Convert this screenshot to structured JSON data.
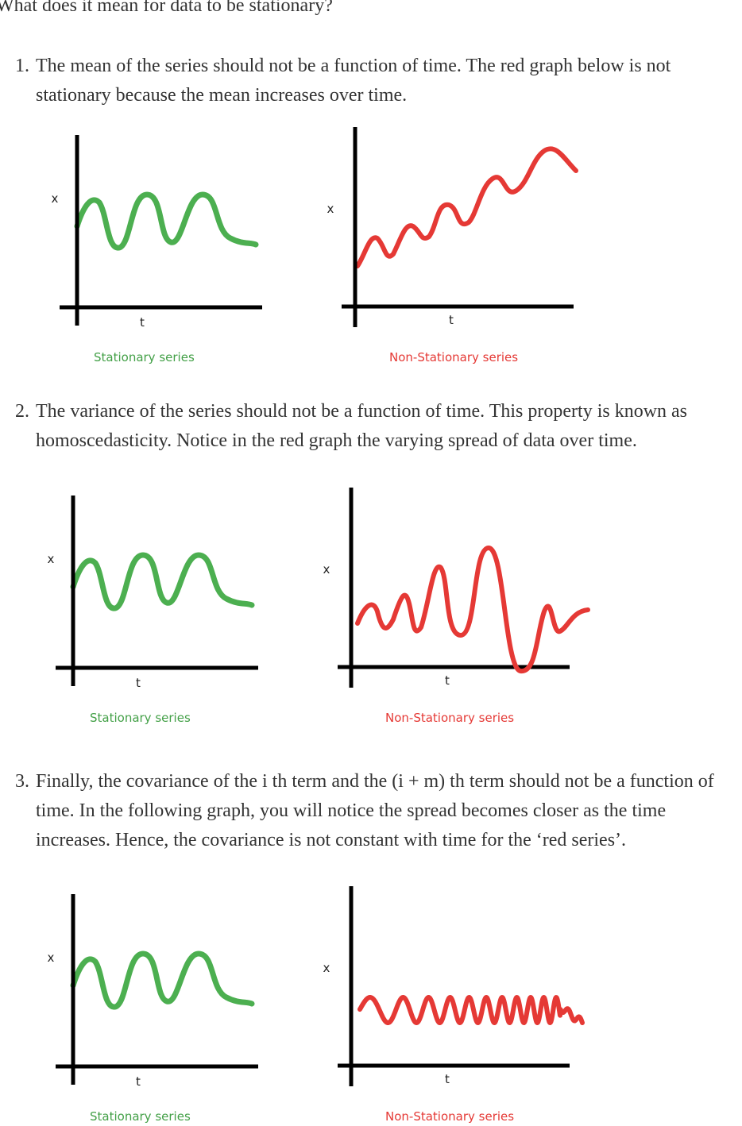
{
  "title": "What does it mean for data to be stationary?",
  "items": [
    {
      "number": "1.",
      "text": "The mean of the series should not be a function of time. The red graph below is not stationary because the mean increases over time.",
      "figures": [
        {
          "y_label": "x",
          "x_label": "t",
          "caption": "Stationary series"
        },
        {
          "y_label": "x",
          "x_label": "t",
          "caption": "Non-Stationary series"
        }
      ]
    },
    {
      "number": "2.",
      "text": "The variance of the series should not be a function of time. This property is known as homoscedasticity. Notice in the red graph the varying spread of data over time.",
      "figures": [
        {
          "y_label": "x",
          "x_label": "t",
          "caption": "Stationary series"
        },
        {
          "y_label": "x",
          "x_label": "t",
          "caption": "Non-Stationary series"
        }
      ]
    },
    {
      "number": "3.",
      "text": "Finally, the covariance of the i th term and the (i + m) th term should not be a function of time. In the following graph, you will notice the spread becomes closer as the time increases. Hence, the covariance is not constant with time for the ‘red series’.",
      "figures": [
        {
          "y_label": "x",
          "x_label": "t",
          "caption": "Stationary series"
        },
        {
          "y_label": "x",
          "x_label": "t",
          "caption": "Non-Stationary series"
        }
      ]
    }
  ]
}
